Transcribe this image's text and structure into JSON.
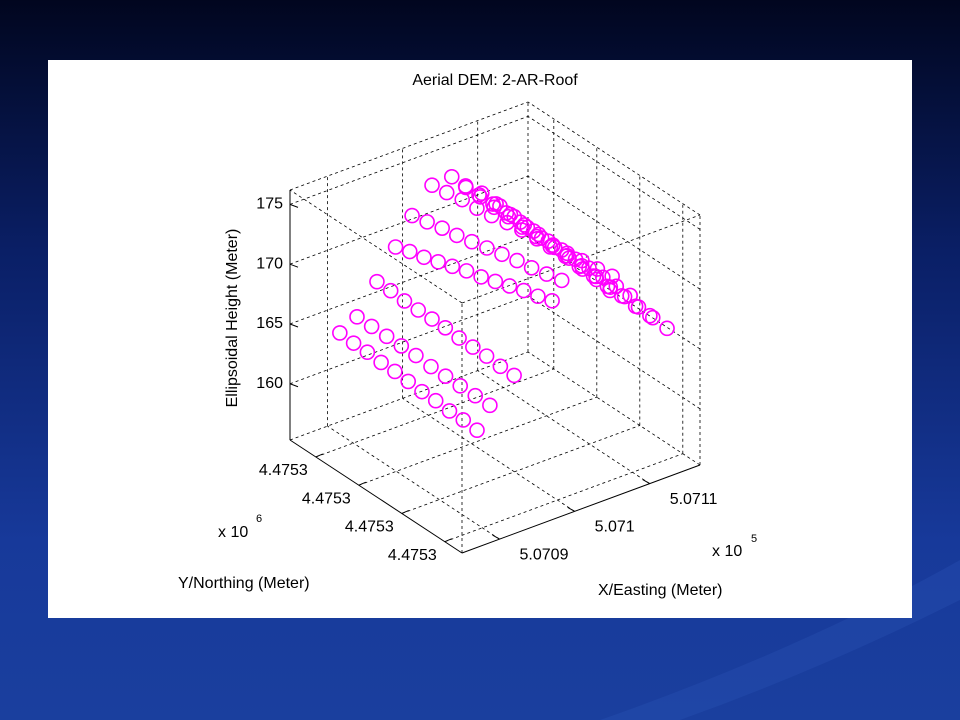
{
  "chart_data": {
    "type": "scatter3d",
    "title": "Aerial DEM: 2-AR-Roof",
    "xlabel": "X/Easting (Meter)",
    "ylabel": "Y/Northing (Meter)",
    "zlabel": "Ellipsoidal Height (Meter)",
    "x_multiplier": {
      "base": "x 10",
      "exponent": "5"
    },
    "y_multiplier": {
      "base": "x 10",
      "exponent": "6"
    },
    "xlim": [
      507085,
      507116.7
    ],
    "ylim": [
      4475300,
      4475340
    ],
    "zlim": [
      155.3,
      176.2
    ],
    "xticks": [
      {
        "value": 507090,
        "label": "5.0709"
      },
      {
        "value": 507100,
        "label": "5.071"
      },
      {
        "value": 507110,
        "label": "5.0711"
      }
    ],
    "yticks": [
      {
        "value": 4475304,
        "label": "4.4753"
      },
      {
        "value": 4475314,
        "label": "4.4753"
      },
      {
        "value": 4475324,
        "label": "4.4753"
      },
      {
        "value": 4475334,
        "label": "4.4753"
      }
    ],
    "zticks": [
      160,
      165,
      170,
      175
    ],
    "grid": true,
    "series": [
      {
        "color": "#ff00ff",
        "x": [
          507087,
          507087,
          507087,
          507087,
          507087,
          507087,
          507087,
          507087,
          507087,
          507087,
          507087,
          507089,
          507089,
          507089,
          507089,
          507089,
          507089,
          507089,
          507089,
          507089,
          507089,
          507092,
          507092,
          507092,
          507092,
          507092,
          507092,
          507092,
          507092,
          507092,
          507092,
          507092,
          507097,
          507097,
          507097,
          507097,
          507097,
          507097,
          507097,
          507097,
          507097,
          507097,
          507097,
          507097,
          507100,
          507100,
          507100,
          507100,
          507100,
          507100,
          507100,
          507100,
          507100,
          507100,
          507100,
          507103.0,
          507103.3,
          507103.7,
          507104.0,
          507104.3,
          507104.7,
          507105.0,
          507105.3,
          507105.7,
          507106.0,
          507106.3,
          507106.7,
          507107.0,
          507105.0,
          507105.3,
          507105.6,
          507105.9,
          507106.2,
          507106.5,
          507106.8,
          507107.2,
          507107.5,
          507107.8,
          507108.1,
          507108.4,
          507108.7,
          507109.0,
          507107.0,
          507107.3,
          507107.6,
          507107.9,
          507108.2,
          507108.5,
          507108.8,
          507109.2,
          507109.5,
          507109.8,
          507110.1,
          507110.4,
          507110.7,
          507111.0,
          507109.0,
          507109.3,
          507109.6,
          507109.9,
          507110.2,
          507110.5,
          507110.8,
          507111.2,
          507111.5,
          507111.8,
          507112.1,
          507112.4,
          507112.7,
          507113.0,
          507105.0,
          507105.3,
          507105.5,
          507105.8,
          507106.0,
          507106.3,
          507106.5,
          507106.8,
          507107.0
        ],
        "y": [
          4475331.9,
          4475328.7,
          4475325.5,
          4475322.3,
          4475319.1,
          4475316.0,
          4475312.8,
          4475309.6,
          4475306.4,
          4475303.2,
          4475300.0,
          4475331.4,
          4475328.0,
          4475324.5,
          4475321.1,
          4475317.7,
          4475314.2,
          4475310.8,
          4475307.4,
          4475303.9,
          4475300.5,
          4475332.0,
          4475328.8,
          4475325.6,
          4475322.4,
          4475319.2,
          4475316.1,
          4475312.9,
          4475309.7,
          4475306.5,
          4475303.3,
          4475300.1,
          4475336.4,
          4475333.1,
          4475329.8,
          4475326.5,
          4475323.2,
          4475319.9,
          4475316.5,
          4475313.2,
          4475309.9,
          4475306.6,
          4475303.3,
          4475300.0,
          4475337.8,
          4475334.3,
          4475330.8,
          4475327.4,
          4475323.9,
          4475320.4,
          4475316.9,
          4475313.4,
          4475310.0,
          4475306.5,
          4475303.0,
          4475338.4,
          4475335.5,
          4475332.6,
          4475329.7,
          4475326.8,
          4475323.9,
          4475321.0,
          4475318.0,
          4475315.1,
          4475312.2,
          4475309.3,
          4475306.4,
          4475303.5,
          4475337.3,
          4475334.6,
          4475332.0,
          4475329.3,
          4475326.7,
          4475324.0,
          4475321.4,
          4475318.7,
          4475316.1,
          4475313.4,
          4475310.8,
          4475308.1,
          4475305.5,
          4475302.8,
          4475337.5,
          4475334.7,
          4475332.0,
          4475329.2,
          4475326.5,
          4475323.7,
          4475321.0,
          4475318.2,
          4475315.5,
          4475312.7,
          4475310.0,
          4475307.2,
          4475304.5,
          4475301.7,
          4475337.3,
          4475334.5,
          4475331.7,
          4475329.0,
          4475326.2,
          4475323.4,
          4475320.6,
          4475317.9,
          4475315.1,
          4475312.3,
          4475309.5,
          4475306.8,
          4475304.0,
          4475301.2,
          4475326.1,
          4475323.3,
          4475320.6,
          4475317.8,
          4475315.1,
          4475312.3,
          4475309.5,
          4475306.8,
          4475304.0
        ],
        "z": [
          165.7,
          165.6,
          165.6,
          165.5,
          165.5,
          165.4,
          165.3,
          165.3,
          165.2,
          165.2,
          165.1,
          166.7,
          166.7,
          166.7,
          166.7,
          166.7,
          166.6,
          166.6,
          166.6,
          166.6,
          166.6,
          168.8,
          168.8,
          168.7,
          168.7,
          168.7,
          168.7,
          168.6,
          168.6,
          168.6,
          168.5,
          168.5,
          169.5,
          169.9,
          170.2,
          170.6,
          171.0,
          171.4,
          171.7,
          172.1,
          172.5,
          172.9,
          173.2,
          173.6,
          171.1,
          171.4,
          171.7,
          171.9,
          172.2,
          172.5,
          172.8,
          173.1,
          173.3,
          173.6,
          173.9,
          172.8,
          172.8,
          172.8,
          172.7,
          172.7,
          172.7,
          172.7,
          172.6,
          172.6,
          172.6,
          172.6,
          172.5,
          172.5,
          173.3,
          173.1,
          172.9,
          172.7,
          172.5,
          172.3,
          172.1,
          171.8,
          171.6,
          171.4,
          171.2,
          171.0,
          170.8,
          170.6,
          171.9,
          171.7,
          171.4,
          171.2,
          170.9,
          170.7,
          170.4,
          170.2,
          169.9,
          169.7,
          169.4,
          169.2,
          168.9,
          168.7,
          171.0,
          170.7,
          170.4,
          170.1,
          169.9,
          169.6,
          169.3,
          169.0,
          168.7,
          168.4,
          168.2,
          167.9,
          167.6,
          167.3,
          173.5,
          173.2,
          172.9,
          172.6,
          172.4,
          172.1,
          171.8,
          171.5,
          171.2
        ]
      }
    ]
  }
}
